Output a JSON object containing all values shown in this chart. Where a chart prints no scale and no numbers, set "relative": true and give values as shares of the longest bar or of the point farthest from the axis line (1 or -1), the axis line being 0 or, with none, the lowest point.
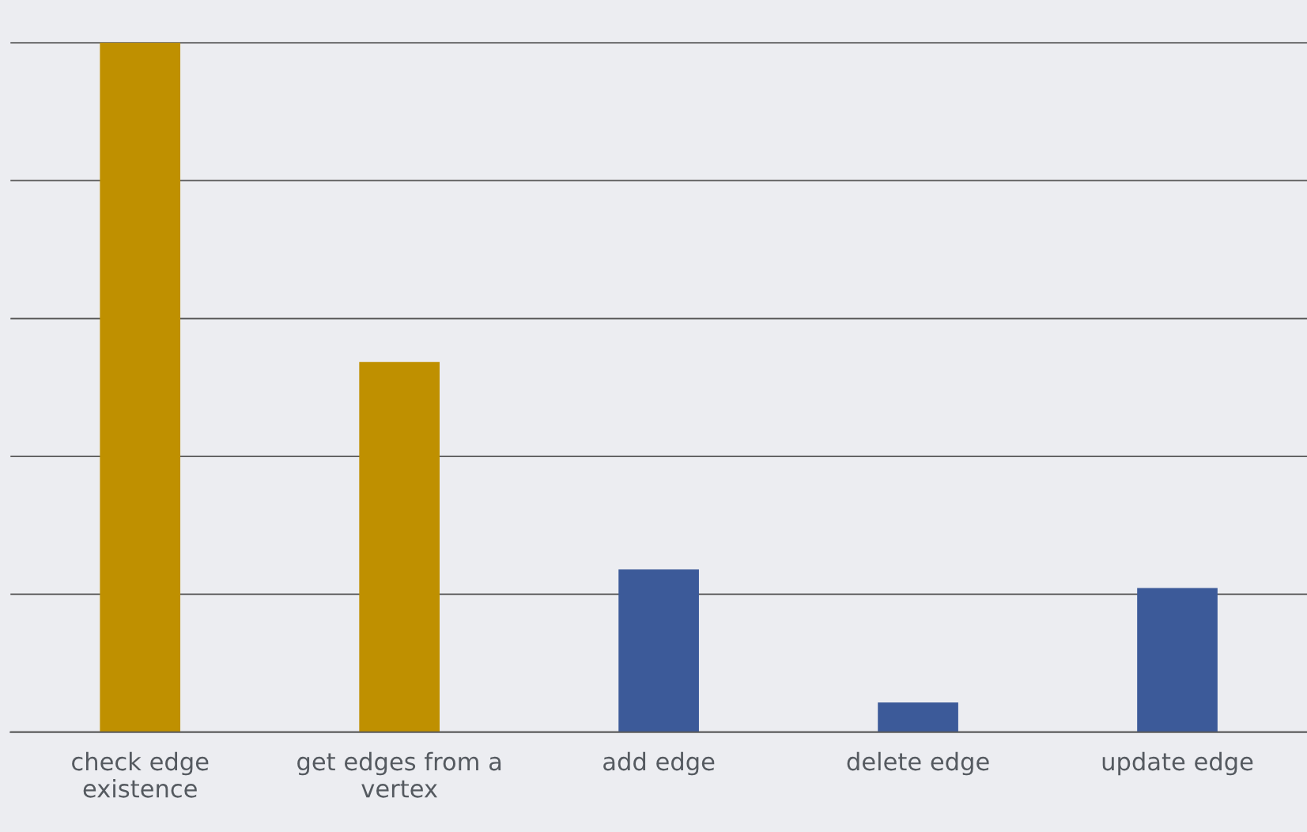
{
  "chart_data": {
    "type": "bar",
    "relative": true,
    "categories": [
      "check edge existence",
      "get edges from a vertex",
      "add edge",
      "delete edge",
      "update edge"
    ],
    "values": [
      1,
      0.537,
      0.236,
      0.043,
      0.209
    ],
    "colors": [
      "#bf9000",
      "#bf9000",
      "#3c5a99",
      "#3c5a99",
      "#3c5a99"
    ],
    "grid": "y"
  }
}
